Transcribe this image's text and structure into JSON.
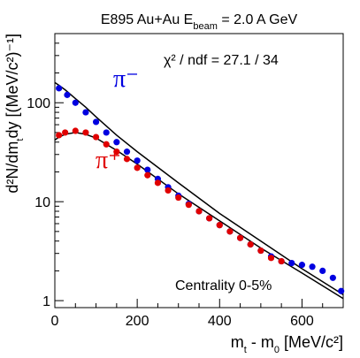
{
  "chart_data": {
    "type": "scatter",
    "title": [
      {
        "text": "E895  Au+Au E"
      },
      {
        "text": "beam",
        "sub": true
      },
      {
        "text": " = 2.0 A GeV"
      }
    ],
    "x_label": [
      {
        "text": "m"
      },
      {
        "text": "t",
        "sub": true
      },
      {
        "text": " - m"
      },
      {
        "text": "0",
        "sub": true
      },
      {
        "text": " [MeV/c²]"
      }
    ],
    "y_label": [
      {
        "text": "d²N/dm"
      },
      {
        "text": "t",
        "sub": true
      },
      {
        "text": "dy [(MeV/c²)⁻¹]"
      }
    ],
    "annotations": [
      "χ² / ndf = 27.1 / 34",
      "Centrality 0-5%"
    ],
    "xlim": [
      0,
      700
    ],
    "xticks": [
      0,
      200,
      400,
      600
    ],
    "xminor": [
      50,
      100,
      150,
      250,
      300,
      350,
      450,
      500,
      550,
      650,
      700
    ],
    "ylim": [
      0.85,
      500
    ],
    "log_y": true,
    "yticks": [
      1,
      10,
      100
    ],
    "yminor": [
      2,
      3,
      4,
      5,
      6,
      7,
      8,
      9,
      20,
      30,
      40,
      50,
      60,
      70,
      80,
      90,
      200,
      300,
      400,
      500
    ],
    "series": [
      {
        "name": "π⁻",
        "color": "#0000e0",
        "x": [
          10,
          30,
          50,
          75,
          100,
          125,
          150,
          175,
          200,
          225,
          250,
          275,
          300,
          325,
          350,
          375,
          400,
          425,
          450,
          475,
          500,
          525,
          550,
          575,
          600,
          625,
          650,
          675,
          695
        ],
        "values": [
          140,
          120,
          100,
          80,
          64,
          50,
          40,
          32,
          26,
          21,
          17,
          14,
          11.5,
          9.5,
          8,
          6.8,
          5.8,
          5,
          4.3,
          3.7,
          3.2,
          2.8,
          2.5,
          2.4,
          2.3,
          2.2,
          2.0,
          1.7,
          1.25
        ]
      },
      {
        "name": "π⁺",
        "color": "#e00000",
        "x": [
          10,
          25,
          50,
          75,
          100,
          125,
          150,
          175,
          200,
          225,
          250,
          275,
          300,
          325,
          350,
          375,
          400,
          425,
          450,
          475,
          500,
          525,
          550
        ],
        "values": [
          47,
          50,
          52,
          50,
          45,
          38,
          32,
          27,
          22,
          18.5,
          15.5,
          13,
          11,
          9.3,
          8,
          6.8,
          5.8,
          5,
          4.3,
          3.7,
          3.2,
          2.7,
          2.5
        ]
      }
    ],
    "fits": [
      {
        "color": "#000000",
        "x": [
          0,
          10,
          25,
          50,
          75,
          100,
          150,
          200,
          300,
          400,
          500,
          600,
          700
        ],
        "values": [
          160,
          150,
          135,
          110,
          90,
          72,
          47,
          32,
          15.5,
          7.6,
          4.0,
          2.1,
          1.15
        ]
      },
      {
        "color": "#000000",
        "x": [
          0,
          10,
          25,
          50,
          75,
          100,
          150,
          200,
          300,
          400,
          500,
          600,
          700
        ],
        "values": [
          42,
          45,
          48,
          50,
          48,
          44,
          33,
          24,
          12,
          6.4,
          3.4,
          1.9,
          1.05
        ]
      }
    ]
  }
}
